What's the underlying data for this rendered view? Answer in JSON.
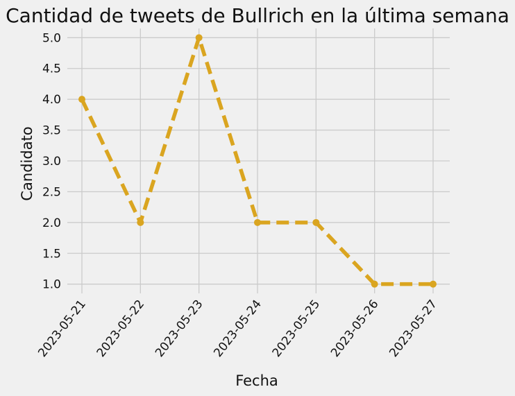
{
  "chart_data": {
    "type": "line",
    "title": "Cantidad de tweets de Bullrich en la última semana",
    "xlabel": "Fecha",
    "ylabel": "Candidato",
    "x": [
      "2023-05-21",
      "2023-05-22",
      "2023-05-23",
      "2023-05-24",
      "2023-05-25",
      "2023-05-26",
      "2023-05-27"
    ],
    "series": [
      {
        "values": [
          4,
          2,
          5,
          2,
          2,
          1,
          1
        ],
        "color": "#daa520"
      }
    ],
    "ylim": [
      0.85,
      5.15
    ],
    "yticks": [
      "1.0",
      "1.5",
      "2.0",
      "2.5",
      "3.0",
      "3.5",
      "4.0",
      "4.5",
      "5.0"
    ],
    "grid": true,
    "line_style": "dashed",
    "marker": "circle",
    "background": "#f0f0f0"
  }
}
